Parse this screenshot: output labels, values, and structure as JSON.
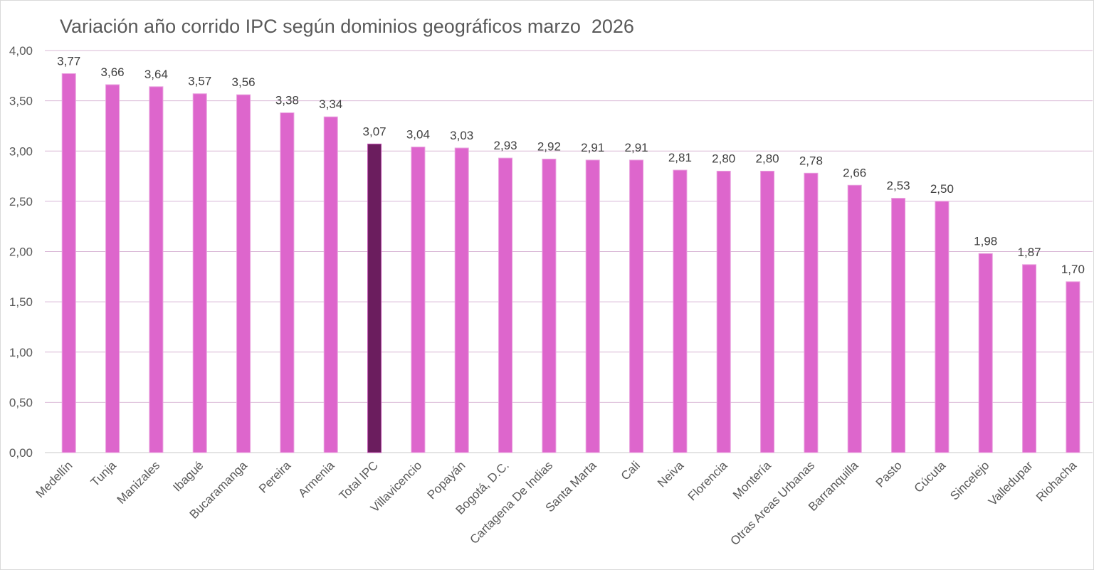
{
  "chart_data": {
    "type": "bar",
    "title": "Variación año corrido IPC según dominios geográficos marzo  2026",
    "xlabel": "",
    "ylabel": "",
    "ylim": [
      0,
      4
    ],
    "yticks": [
      "0,00",
      "0,50",
      "1,00",
      "1,50",
      "2,00",
      "2,50",
      "3,00",
      "3,50",
      "4,00"
    ],
    "grid": true,
    "categories": [
      "Medellín",
      "Tunja",
      "Manizales",
      "Ibagué",
      "Bucaramanga",
      "Pereira",
      "Armenia",
      "Total IPC",
      "Villavicencio",
      "Popayán",
      "Bogotá, D.C.",
      "Cartagena De Indias",
      "Santa Marta",
      "Cali",
      "Neiva",
      "Florencia",
      "Montería",
      "Otras Areas Urbanas",
      "Barranquilla",
      "Pasto",
      "Cúcuta",
      "Sincelejo",
      "Valledupar",
      "Riohacha"
    ],
    "values": [
      3.77,
      3.66,
      3.64,
      3.57,
      3.56,
      3.38,
      3.34,
      3.07,
      3.04,
      3.03,
      2.93,
      2.92,
      2.91,
      2.91,
      2.81,
      2.8,
      2.8,
      2.78,
      2.66,
      2.53,
      2.5,
      1.98,
      1.87,
      1.7
    ],
    "data_labels": [
      "3,77",
      "3,66",
      "3,64",
      "3,57",
      "3,56",
      "3,38",
      "3,34",
      "3,07",
      "3,04",
      "3,03",
      "2,93",
      "2,92",
      "2,91",
      "2,91",
      "2,81",
      "2,80",
      "2,80",
      "2,78",
      "2,66",
      "2,53",
      "2,50",
      "1,98",
      "1,87",
      "1,70"
    ],
    "highlight_category": "Total IPC",
    "colors": {
      "bar": "#dd66cc",
      "highlight": "#6b1d5e",
      "grid": "#d9b8d6"
    }
  }
}
